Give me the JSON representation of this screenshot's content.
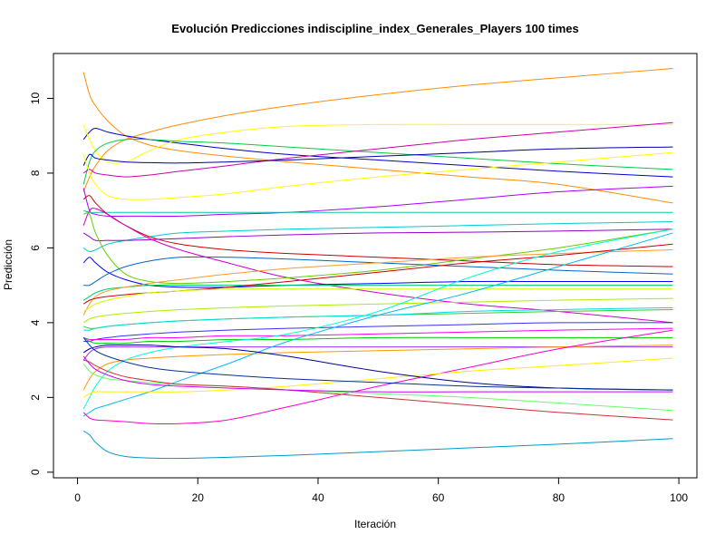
{
  "chart_data": {
    "type": "line",
    "title": "Evolución Predicciones indiscipline_index_Generales_Players 100 times",
    "xlabel": "Iteración",
    "ylabel": "Predicción",
    "xlim": [
      -4,
      103
    ],
    "ylim": [
      -0.15,
      11.2
    ],
    "x_ticks": [
      0,
      20,
      40,
      60,
      80,
      100
    ],
    "y_ticks": [
      0,
      2,
      4,
      6,
      8,
      10
    ],
    "x_tick_labels": [
      "0",
      "20",
      "40",
      "60",
      "80",
      "100"
    ],
    "y_tick_labels": [
      "0",
      "2",
      "4",
      "6",
      "8",
      "10"
    ],
    "grid": false,
    "legend": "none",
    "x": [
      1,
      2,
      3,
      5,
      8,
      12,
      17,
      25,
      35,
      50,
      65,
      80,
      99
    ],
    "series": [
      {
        "color": "#ff8c00",
        "values": [
          10.7,
          10.1,
          9.8,
          9.4,
          9.0,
          8.75,
          8.6,
          8.45,
          8.3,
          8.1,
          7.9,
          7.7,
          7.2
        ]
      },
      {
        "color": "#ff8c00",
        "values": [
          7.5,
          7.9,
          8.2,
          8.6,
          8.9,
          9.1,
          9.3,
          9.55,
          9.8,
          10.1,
          10.35,
          10.55,
          10.8
        ]
      },
      {
        "color": "#0000cd",
        "values": [
          8.9,
          9.1,
          9.2,
          9.1,
          9.0,
          8.9,
          8.8,
          8.65,
          8.5,
          8.35,
          8.2,
          8.05,
          7.9
        ]
      },
      {
        "color": "#ffff00",
        "values": [
          9.3,
          8.9,
          8.6,
          8.3,
          8.3,
          8.6,
          8.9,
          9.1,
          9.25,
          9.3,
          9.3,
          9.3,
          9.3
        ]
      },
      {
        "color": "#00cc44",
        "values": [
          7.7,
          8.3,
          8.6,
          8.8,
          8.9,
          8.9,
          8.85,
          8.8,
          8.7,
          8.55,
          8.4,
          8.25,
          8.1
        ]
      },
      {
        "color": "#cc00aa",
        "values": [
          8.0,
          8.1,
          8.0,
          7.95,
          7.9,
          7.95,
          8.05,
          8.2,
          8.4,
          8.65,
          8.9,
          9.1,
          9.35
        ]
      },
      {
        "color": "#0000aa",
        "values": [
          8.2,
          8.5,
          8.4,
          8.35,
          8.3,
          8.28,
          8.27,
          8.3,
          8.35,
          8.45,
          8.55,
          8.65,
          8.7
        ]
      },
      {
        "color": "#ffff00",
        "values": [
          8.5,
          8.0,
          7.7,
          7.4,
          7.3,
          7.3,
          7.35,
          7.45,
          7.65,
          7.9,
          8.1,
          8.3,
          8.55
        ]
      },
      {
        "color": "#aa00ff",
        "values": [
          7.6,
          7.0,
          6.9,
          6.85,
          6.85,
          6.85,
          6.85,
          6.9,
          6.95,
          7.1,
          7.3,
          7.5,
          7.65
        ]
      },
      {
        "color": "#00ccaa",
        "values": [
          7.0,
          6.95,
          6.95,
          6.95,
          6.95,
          6.95,
          6.95,
          6.95,
          6.95,
          6.95,
          6.95,
          6.95,
          6.95
        ]
      },
      {
        "color": "#00cccc",
        "values": [
          6.0,
          5.9,
          5.95,
          6.1,
          6.2,
          6.3,
          6.4,
          6.45,
          6.5,
          6.55,
          6.6,
          6.65,
          6.7
        ]
      },
      {
        "color": "#cc0000",
        "values": [
          7.3,
          7.4,
          7.2,
          6.9,
          6.6,
          6.3,
          6.1,
          5.95,
          5.85,
          5.75,
          5.65,
          5.55,
          5.5
        ]
      },
      {
        "color": "#9900cc",
        "values": [
          6.4,
          6.3,
          6.2,
          6.2,
          6.2,
          6.22,
          6.25,
          6.3,
          6.35,
          6.4,
          6.42,
          6.45,
          6.5
        ]
      },
      {
        "color": "#cc00cc",
        "values": [
          6.6,
          7.0,
          7.05,
          6.9,
          6.6,
          6.25,
          5.95,
          5.6,
          5.2,
          4.8,
          4.5,
          4.3,
          4.0
        ]
      },
      {
        "color": "#66cc00",
        "values": [
          6.9,
          6.9,
          6.4,
          5.8,
          5.3,
          5.1,
          5.05,
          5.1,
          5.2,
          5.4,
          5.7,
          6.0,
          6.5
        ]
      },
      {
        "color": "#0000ff",
        "values": [
          5.6,
          5.75,
          5.6,
          5.35,
          5.15,
          5.0,
          4.95,
          4.95,
          5.0,
          5.05,
          5.1,
          5.1,
          5.1
        ]
      },
      {
        "color": "#0066cc",
        "values": [
          5.0,
          5.0,
          5.1,
          5.3,
          5.5,
          5.65,
          5.75,
          5.75,
          5.7,
          5.6,
          5.5,
          5.4,
          5.3
        ]
      },
      {
        "color": "#00cc66",
        "values": [
          4.6,
          4.7,
          4.8,
          4.9,
          4.95,
          5.0,
          5.0,
          5.0,
          5.0,
          5.0,
          5.0,
          5.0,
          5.0
        ]
      },
      {
        "color": "#ff9933",
        "values": [
          4.2,
          4.5,
          4.7,
          4.85,
          4.95,
          5.05,
          5.15,
          5.3,
          5.45,
          5.6,
          5.75,
          5.85,
          5.95
        ]
      },
      {
        "color": "#cc0000",
        "values": [
          4.5,
          4.6,
          4.65,
          4.7,
          4.75,
          4.8,
          4.85,
          4.95,
          5.1,
          5.35,
          5.6,
          5.8,
          6.1
        ]
      },
      {
        "color": "#ccff00",
        "values": [
          4.3,
          4.4,
          4.5,
          4.6,
          4.7,
          4.8,
          4.85,
          4.9,
          4.9,
          4.9,
          4.9,
          4.9,
          4.9
        ]
      },
      {
        "color": "#aaee00",
        "values": [
          4.0,
          4.1,
          4.15,
          4.2,
          4.25,
          4.3,
          4.35,
          4.4,
          4.45,
          4.5,
          4.55,
          4.6,
          4.65
        ]
      },
      {
        "color": "#33cc33",
        "values": [
          3.9,
          3.85,
          3.85,
          3.9,
          3.95,
          4.0,
          4.05,
          4.1,
          4.15,
          4.2,
          4.25,
          4.3,
          4.35
        ]
      },
      {
        "color": "#00dddd",
        "values": [
          3.8,
          3.8,
          3.85,
          3.9,
          3.95,
          4.0,
          4.05,
          4.1,
          4.15,
          4.2,
          4.3,
          4.35,
          4.4
        ]
      },
      {
        "color": "#3333ff",
        "values": [
          3.5,
          3.5,
          3.55,
          3.6,
          3.65,
          3.7,
          3.75,
          3.8,
          3.85,
          3.9,
          3.95,
          4.0,
          4.0
        ]
      },
      {
        "color": "#ff00ff",
        "values": [
          3.6,
          3.55,
          3.55,
          3.55,
          3.55,
          3.6,
          3.6,
          3.65,
          3.65,
          3.7,
          3.75,
          3.8,
          3.85
        ]
      },
      {
        "color": "#00cc00",
        "values": [
          3.6,
          3.5,
          3.45,
          3.45,
          3.45,
          3.5,
          3.5,
          3.55,
          3.55,
          3.6,
          3.6,
          3.6,
          3.6
        ]
      },
      {
        "color": "#9933ff",
        "values": [
          3.0,
          3.2,
          3.3,
          3.35,
          3.35,
          3.35,
          3.35,
          3.35,
          3.35,
          3.35,
          3.35,
          3.35,
          3.35
        ]
      },
      {
        "color": "#ff9900",
        "values": [
          2.2,
          2.5,
          2.7,
          2.9,
          3.0,
          3.05,
          3.1,
          3.15,
          3.2,
          3.25,
          3.3,
          3.35,
          3.4
        ]
      },
      {
        "color": "#00ffcc",
        "values": [
          1.7,
          2.0,
          2.3,
          2.7,
          3.0,
          3.2,
          3.35,
          3.5,
          3.7,
          4.3,
          5.2,
          5.9,
          6.5
        ]
      },
      {
        "color": "#00bbff",
        "values": [
          1.5,
          1.6,
          1.7,
          1.8,
          1.95,
          2.15,
          2.45,
          2.9,
          3.5,
          4.2,
          4.8,
          5.5,
          6.4
        ]
      },
      {
        "color": "#ff00cc",
        "values": [
          1.6,
          1.45,
          1.4,
          1.38,
          1.35,
          1.3,
          1.3,
          1.4,
          1.75,
          2.3,
          2.8,
          3.3,
          3.8
        ]
      },
      {
        "color": "#ffee00",
        "values": [
          2.0,
          2.1,
          2.15,
          2.15,
          2.15,
          2.15,
          2.15,
          2.2,
          2.3,
          2.5,
          2.7,
          2.85,
          3.05
        ]
      },
      {
        "color": "#000099",
        "values": [
          3.2,
          3.3,
          3.35,
          3.4,
          3.4,
          3.4,
          3.35,
          3.3,
          3.1,
          2.7,
          2.4,
          2.25,
          2.2
        ]
      },
      {
        "color": "#003399",
        "values": [
          3.6,
          3.4,
          3.25,
          3.1,
          2.95,
          2.8,
          2.7,
          2.6,
          2.5,
          2.4,
          2.3,
          2.25,
          2.2
        ]
      },
      {
        "color": "#66ff66",
        "values": [
          2.9,
          2.7,
          2.6,
          2.5,
          2.45,
          2.4,
          2.35,
          2.3,
          2.2,
          2.1,
          2.0,
          1.85,
          1.65
        ]
      },
      {
        "color": "#cc3333",
        "values": [
          3.0,
          2.95,
          2.85,
          2.7,
          2.55,
          2.45,
          2.35,
          2.3,
          2.2,
          2.0,
          1.8,
          1.6,
          1.4
        ]
      },
      {
        "color": "#cc00ff",
        "values": [
          3.1,
          2.9,
          2.75,
          2.6,
          2.45,
          2.35,
          2.3,
          2.25,
          2.2,
          2.15,
          2.15,
          2.15,
          2.15
        ]
      },
      {
        "color": "#0099cc",
        "values": [
          1.1,
          1.0,
          0.8,
          0.55,
          0.42,
          0.38,
          0.37,
          0.4,
          0.45,
          0.55,
          0.65,
          0.75,
          0.9
        ]
      }
    ]
  }
}
